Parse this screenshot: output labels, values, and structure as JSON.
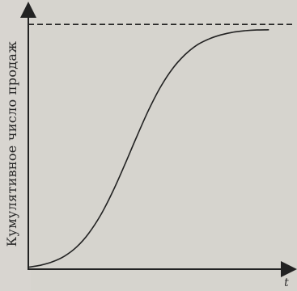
{
  "chart_data": {
    "type": "line",
    "title": "",
    "ylabel": "Кумулятивное число продаж",
    "xlabel": "t",
    "x_ticks": [],
    "y_ticks": [],
    "grid": false,
    "legend": "none",
    "saturation_line": {
      "style": "dashed",
      "y": 1.0
    },
    "series": [
      {
        "x": [
          0,
          0.05,
          0.1,
          0.15,
          0.2,
          0.25,
          0.3,
          0.35,
          0.4,
          0.45,
          0.5,
          0.55,
          0.6,
          0.65,
          0.7,
          0.75,
          0.8,
          0.85,
          0.9,
          0.95,
          1.0
        ],
        "y": [
          0.008,
          0.016,
          0.03,
          0.053,
          0.09,
          0.145,
          0.22,
          0.315,
          0.425,
          0.54,
          0.65,
          0.745,
          0.82,
          0.875,
          0.915,
          0.94,
          0.957,
          0.968,
          0.974,
          0.977,
          0.978
        ]
      }
    ],
    "xlim": [
      0,
      1.1
    ],
    "ylim": [
      0,
      1.06
    ]
  },
  "colors": {
    "background": "#d8d5d0",
    "ink": "#222222"
  }
}
